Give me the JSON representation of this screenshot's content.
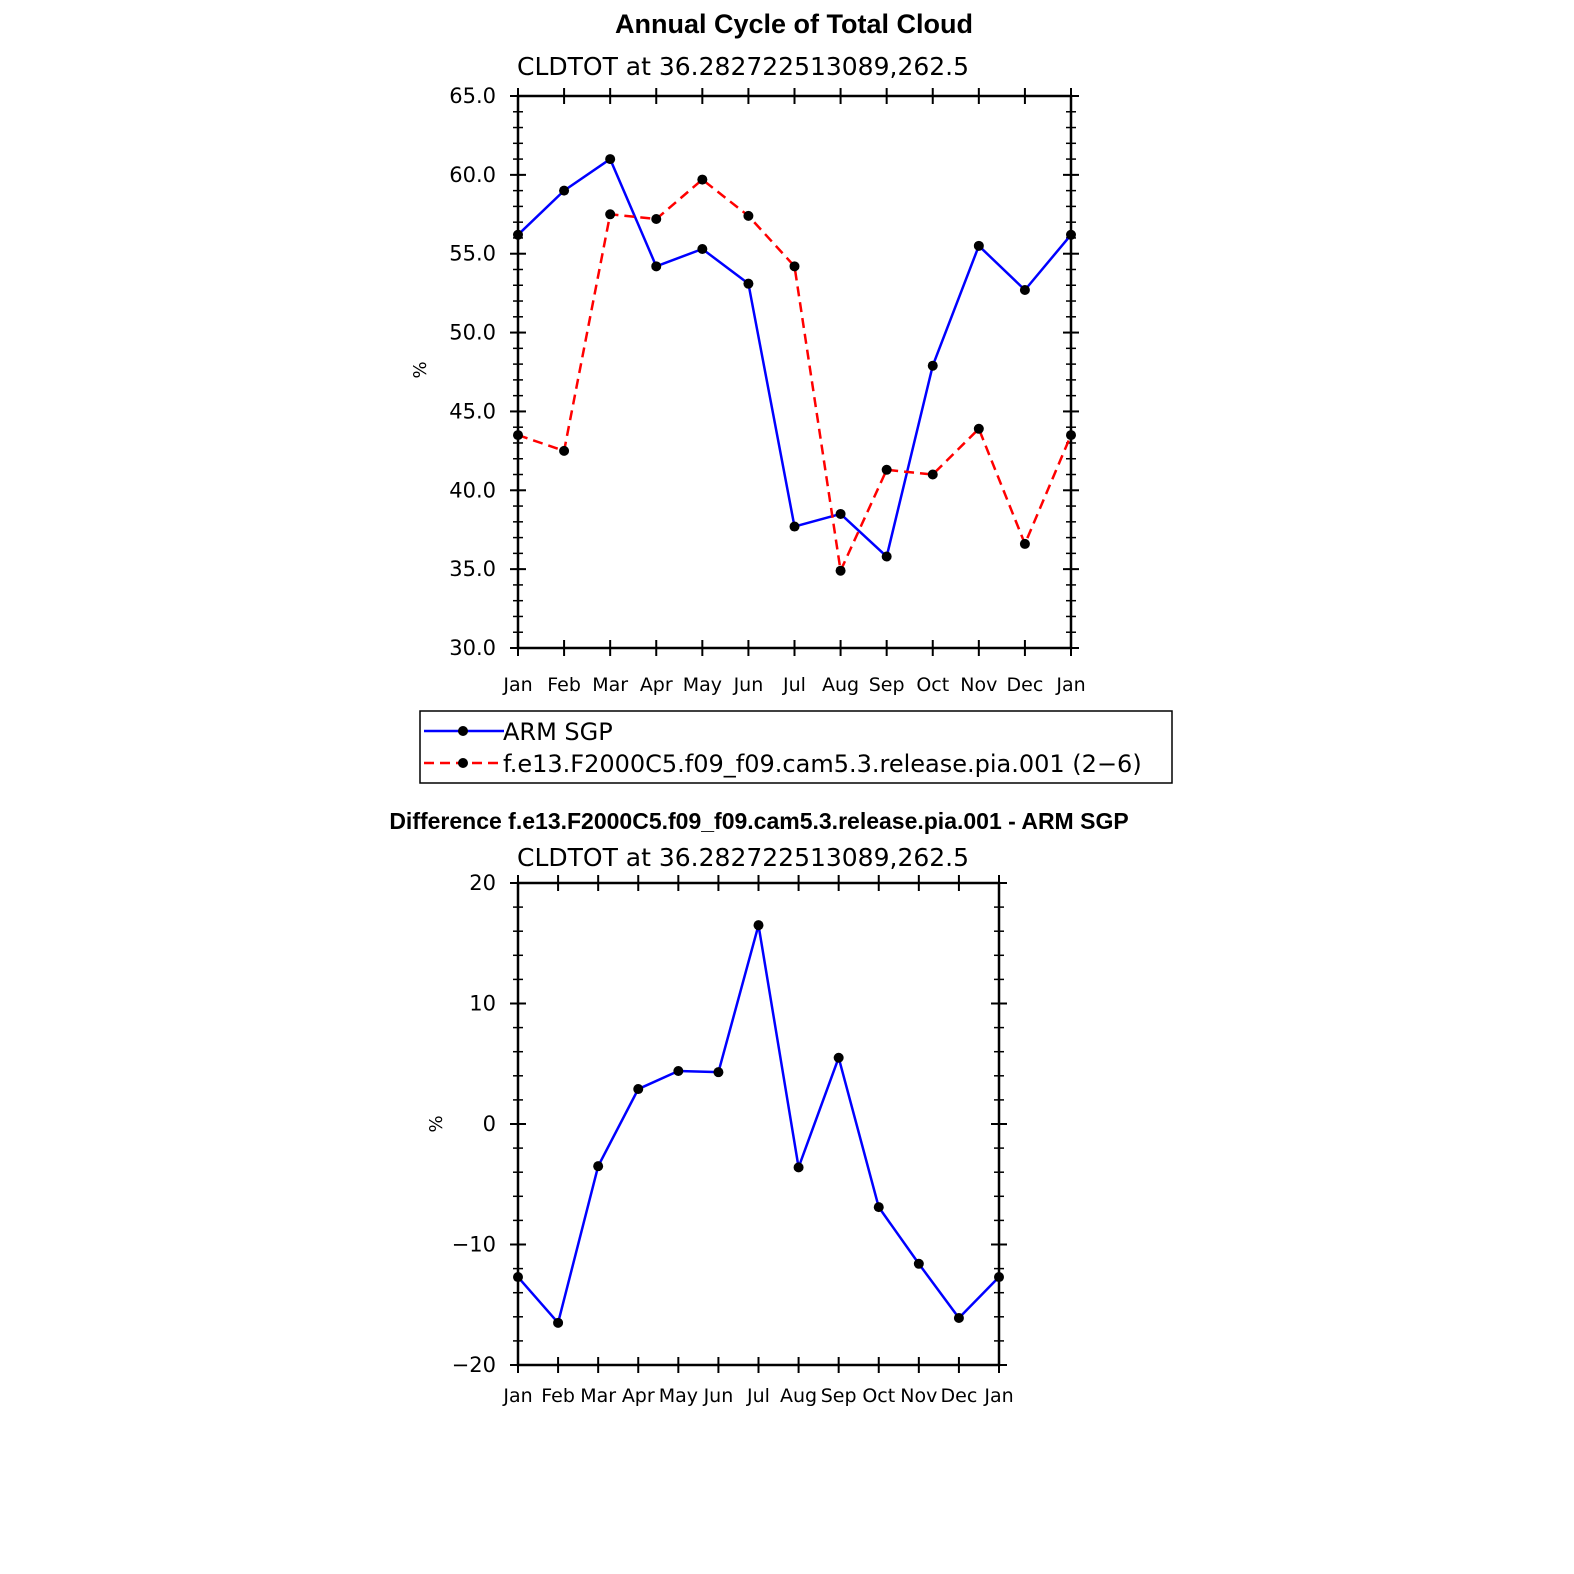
{
  "chart_data": [
    {
      "type": "line",
      "title": "Annual Cycle of Total Cloud",
      "subtitle": "CLDTOT at 36.282722513089,262.5",
      "ylabel": "%",
      "xlabel": "",
      "ylim": [
        30,
        65
      ],
      "yticks": [
        "30.0",
        "35.0",
        "40.0",
        "45.0",
        "50.0",
        "55.0",
        "60.0",
        "65.0"
      ],
      "categories": [
        "Jan",
        "Feb",
        "Mar",
        "Apr",
        "May",
        "Jun",
        "Jul",
        "Aug",
        "Sep",
        "Oct",
        "Nov",
        "Dec",
        "Jan"
      ],
      "series": [
        {
          "name": "ARM SGP",
          "color": "#0000ff",
          "dash": "solid",
          "values": [
            56.2,
            59.0,
            61.0,
            54.2,
            55.3,
            53.1,
            37.7,
            38.5,
            35.8,
            47.9,
            55.5,
            52.7,
            56.2
          ]
        },
        {
          "name": "f.e13.F2000C5.f09_f09.cam5.3.release.pia.001 (2−6)",
          "color": "#ff0000",
          "dash": "dashed",
          "values": [
            43.5,
            42.5,
            57.5,
            57.2,
            59.7,
            57.4,
            54.2,
            34.9,
            41.3,
            41.0,
            43.9,
            36.6,
            43.5
          ]
        }
      ],
      "legend": "below"
    },
    {
      "type": "line",
      "title": "Difference f.e13.F2000C5.f09_f09.cam5.3.release.pia.001 - ARM SGP",
      "subtitle": "CLDTOT at 36.282722513089,262.5",
      "ylabel": "%",
      "xlabel": "",
      "ylim": [
        -20,
        20
      ],
      "yticks": [
        "−20",
        "−10",
        "0",
        "10",
        "20"
      ],
      "categories": [
        "Jan",
        "Feb",
        "Mar",
        "Apr",
        "May",
        "Jun",
        "Jul",
        "Aug",
        "Sep",
        "Oct",
        "Nov",
        "Dec",
        "Jan"
      ],
      "series": [
        {
          "name": "Difference",
          "color": "#0000ff",
          "dash": "solid",
          "values": [
            -12.7,
            -16.5,
            -3.5,
            2.9,
            4.4,
            4.3,
            16.5,
            -3.6,
            5.5,
            -6.9,
            -11.6,
            -16.1,
            -12.7
          ]
        }
      ]
    }
  ]
}
